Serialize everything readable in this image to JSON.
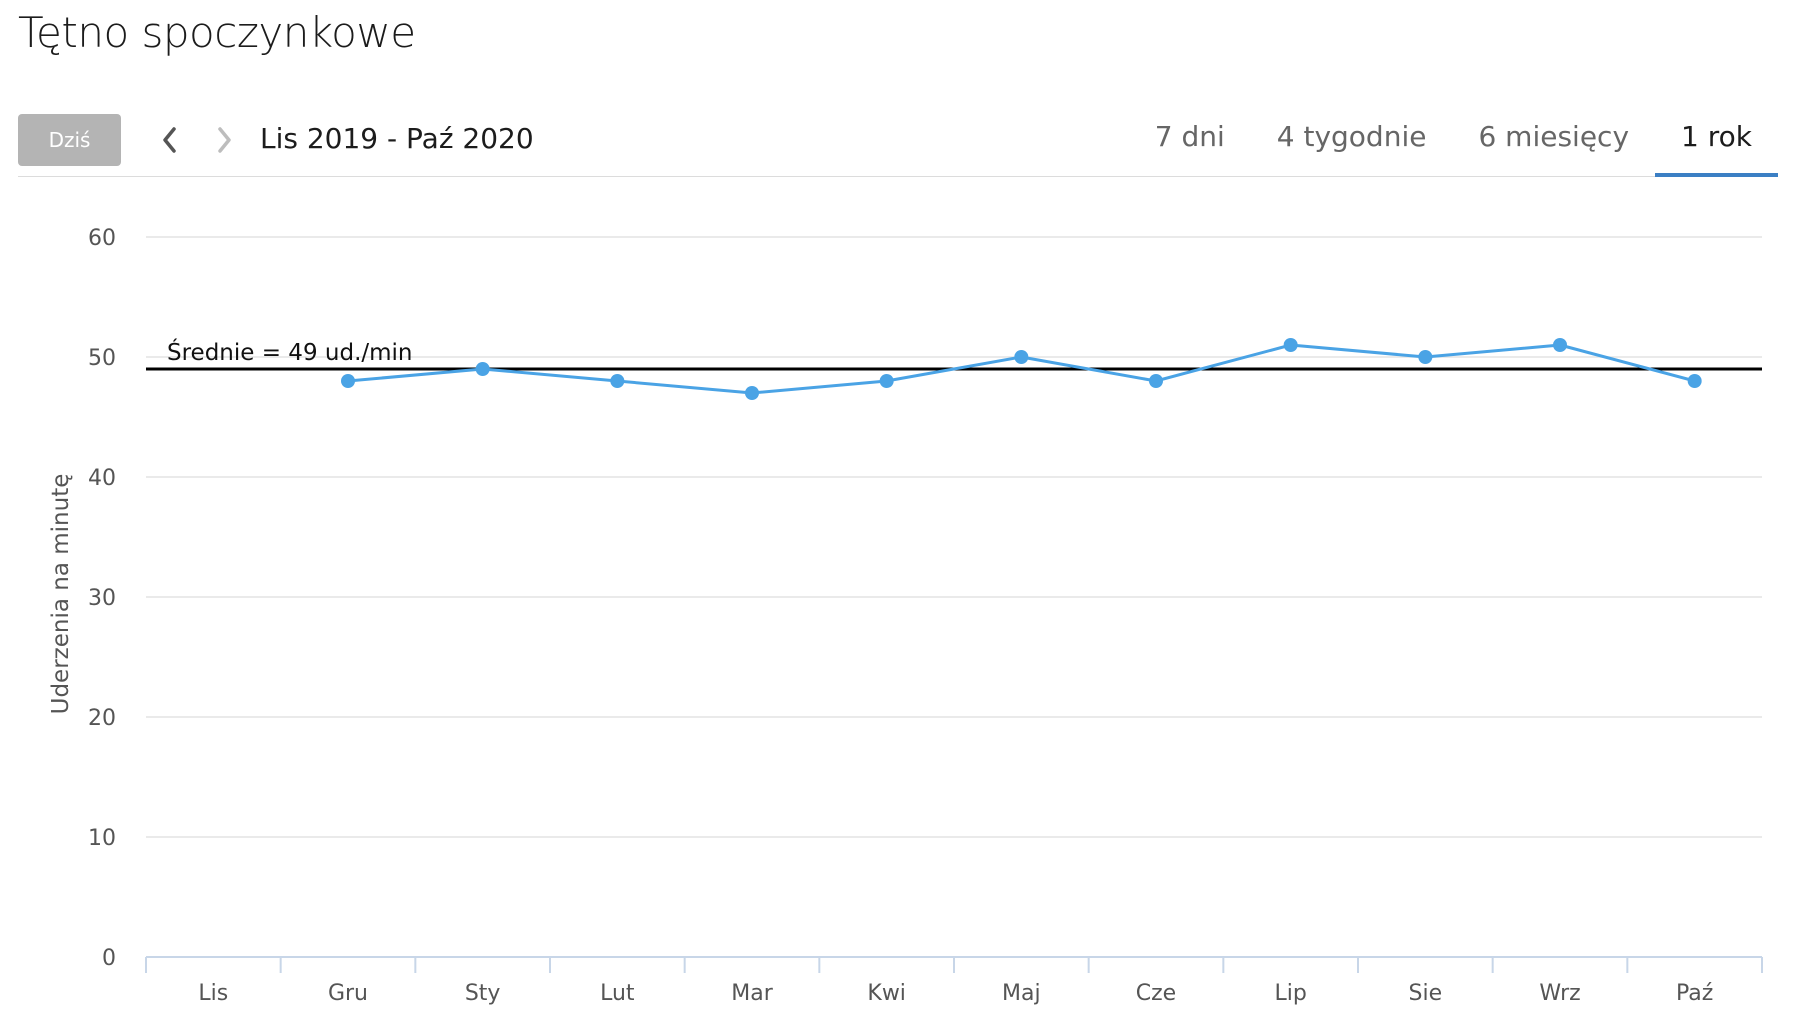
{
  "page": {
    "title": "Tętno spoczynkowe"
  },
  "toolbar": {
    "today_label": "Dziś",
    "range_label": "Lis 2019 - Paź 2020",
    "tabs": [
      {
        "label": "7 dni",
        "active": false
      },
      {
        "label": "4 tygodnie",
        "active": false
      },
      {
        "label": "6 miesięcy",
        "active": false
      },
      {
        "label": "1 rok",
        "active": true
      }
    ]
  },
  "colors": {
    "series": "#4aa3e5",
    "average_line": "#000000",
    "active_tab": "#3b7fc4",
    "grid": "#e3e3e3"
  },
  "chart_data": {
    "type": "line",
    "title": "",
    "xlabel": "",
    "ylabel": "Uderzenia na minutę",
    "categories": [
      "Lis",
      "Gru",
      "Sty",
      "Lut",
      "Mar",
      "Kwi",
      "Maj",
      "Cze",
      "Lip",
      "Sie",
      "Wrz",
      "Paź"
    ],
    "series": [
      {
        "values": [
          null,
          48,
          49,
          48,
          47,
          48,
          50,
          48,
          51,
          50,
          51,
          48
        ]
      }
    ],
    "ylim": [
      0,
      60
    ],
    "yticks": [
      0,
      10,
      20,
      30,
      40,
      50,
      60
    ],
    "grid": true,
    "reference_line": {
      "value": 49,
      "label": "Średnie = 49 ud./min"
    }
  }
}
